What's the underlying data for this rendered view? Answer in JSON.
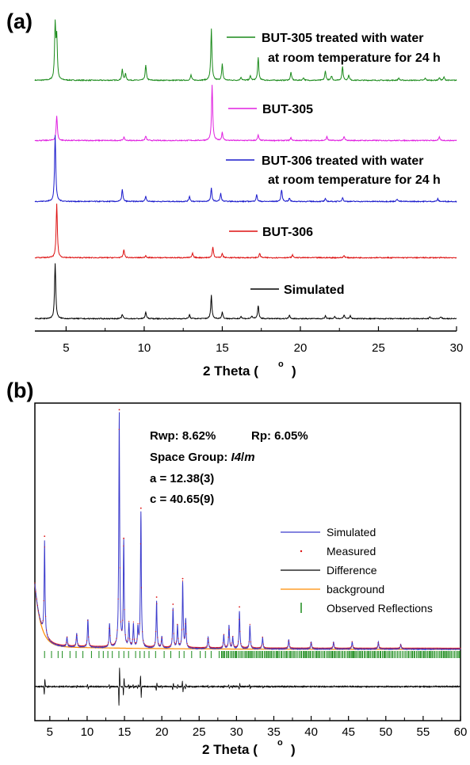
{
  "panel_a": {
    "label": "(a)",
    "xlabel": "2 Theta (",
    "xlabel_unit": "o",
    "xlabel_end": ")",
    "x_ticks": [
      "5",
      "10",
      "15",
      "20",
      "25",
      "30"
    ],
    "legend": [
      {
        "lines": [
          "BUT-305 treated with water",
          "at room temperature for 24 h"
        ],
        "color": "#1a8a1a"
      },
      {
        "lines": [
          "BUT-305"
        ],
        "color": "#e020e0"
      },
      {
        "lines": [
          "BUT-306 treated with water",
          "at room temperature for 24 h"
        ],
        "color": "#1a1acc"
      },
      {
        "lines": [
          "BUT-306"
        ],
        "color": "#dd1111"
      },
      {
        "lines": [
          "Simulated"
        ],
        "color": "#000000"
      }
    ]
  },
  "panel_b": {
    "label": "(b)",
    "xlabel": "2 Theta (",
    "xlabel_unit": "o",
    "xlabel_end": ")",
    "x_ticks": [
      "5",
      "10",
      "15",
      "20",
      "25",
      "30",
      "35",
      "40",
      "45",
      "50",
      "55",
      "60"
    ],
    "annotations": {
      "rwp": "Rwp: 8.62%",
      "rp": "Rp: 6.05%",
      "space_group_prefix": "Space Group: ",
      "space_group_italic": "I4",
      "space_group_suffix": "/",
      "space_group_m": "m",
      "a": "a = 12.38(3)",
      "c": "c = 40.65(9)"
    },
    "legend": [
      {
        "label": "Simulated",
        "color": "#3b3bcc",
        "style": "line"
      },
      {
        "label": "Measured",
        "color": "#dd1111",
        "style": "dot"
      },
      {
        "label": "Difference",
        "color": "#000000",
        "style": "line"
      },
      {
        "label": "background",
        "color": "#ff8c00",
        "style": "line"
      },
      {
        "label": "Observed Reflections",
        "color": "#1a8a1a",
        "style": "tick"
      }
    ]
  },
  "chart_data": [
    {
      "type": "line",
      "panel": "(a)",
      "xlabel": "2 Theta (°)",
      "xlim": [
        3,
        30
      ],
      "series": [
        {
          "name": "BUT-305 treated with water at room temperature for 24 h",
          "color": "#1a8a1a",
          "peaks": [
            [
              4.3,
              1.0
            ],
            [
              4.4,
              0.75
            ],
            [
              8.6,
              0.2
            ],
            [
              8.8,
              0.12
            ],
            [
              10.1,
              0.28
            ],
            [
              13.0,
              0.1
            ],
            [
              14.3,
              0.95
            ],
            [
              15.0,
              0.3
            ],
            [
              16.2,
              0.06
            ],
            [
              16.8,
              0.08
            ],
            [
              17.3,
              0.42
            ],
            [
              19.4,
              0.15
            ],
            [
              20.2,
              0.05
            ],
            [
              21.6,
              0.17
            ],
            [
              22.0,
              0.08
            ],
            [
              22.7,
              0.25
            ],
            [
              23.1,
              0.1
            ],
            [
              26.3,
              0.04
            ],
            [
              28.0,
              0.04
            ],
            [
              28.9,
              0.05
            ],
            [
              29.2,
              0.06
            ]
          ]
        },
        {
          "name": "BUT-305",
          "color": "#e020e0",
          "peaks": [
            [
              4.4,
              0.45
            ],
            [
              8.7,
              0.06
            ],
            [
              10.1,
              0.08
            ],
            [
              14.35,
              1.0
            ],
            [
              15.0,
              0.15
            ],
            [
              17.3,
              0.1
            ],
            [
              19.4,
              0.05
            ],
            [
              21.7,
              0.07
            ],
            [
              22.8,
              0.07
            ],
            [
              28.9,
              0.06
            ]
          ]
        },
        {
          "name": "BUT-306 treated with water at room temperature for 24 h",
          "color": "#1a1acc",
          "peaks": [
            [
              4.3,
              1.0
            ],
            [
              8.6,
              0.18
            ],
            [
              10.1,
              0.08
            ],
            [
              12.9,
              0.08
            ],
            [
              14.3,
              0.2
            ],
            [
              14.9,
              0.12
            ],
            [
              17.2,
              0.1
            ],
            [
              18.8,
              0.18
            ],
            [
              19.3,
              0.05
            ],
            [
              21.6,
              0.04
            ],
            [
              22.7,
              0.06
            ],
            [
              26.2,
              0.04
            ],
            [
              28.8,
              0.04
            ]
          ]
        },
        {
          "name": "BUT-306",
          "color": "#dd1111",
          "peaks": [
            [
              4.4,
              1.0
            ],
            [
              8.7,
              0.15
            ],
            [
              10.1,
              0.04
            ],
            [
              13.1,
              0.08
            ],
            [
              14.4,
              0.2
            ],
            [
              15.0,
              0.08
            ],
            [
              17.4,
              0.08
            ],
            [
              19.5,
              0.05
            ],
            [
              22.8,
              0.04
            ]
          ]
        },
        {
          "name": "Simulated",
          "color": "#000000",
          "peaks": [
            [
              4.3,
              1.0
            ],
            [
              8.6,
              0.08
            ],
            [
              10.1,
              0.12
            ],
            [
              12.9,
              0.07
            ],
            [
              14.3,
              0.42
            ],
            [
              15.0,
              0.12
            ],
            [
              16.2,
              0.04
            ],
            [
              16.9,
              0.05
            ],
            [
              17.3,
              0.24
            ],
            [
              19.3,
              0.07
            ],
            [
              21.6,
              0.05
            ],
            [
              22.2,
              0.04
            ],
            [
              22.8,
              0.07
            ],
            [
              23.2,
              0.05
            ],
            [
              28.3,
              0.03
            ],
            [
              29.0,
              0.03
            ]
          ]
        }
      ]
    },
    {
      "type": "line",
      "panel": "(b)",
      "xlabel": "2 Theta (°)",
      "xlim": [
        3,
        60
      ],
      "series": [
        {
          "name": "Simulated",
          "color": "#3b3bcc",
          "peaks": [
            [
              4.3,
              0.4
            ],
            [
              7.3,
              0.04
            ],
            [
              8.6,
              0.06
            ],
            [
              10.1,
              0.12
            ],
            [
              13.0,
              0.1
            ],
            [
              14.3,
              1.0
            ],
            [
              14.9,
              0.45
            ],
            [
              15.6,
              0.1
            ],
            [
              16.2,
              0.1
            ],
            [
              16.8,
              0.08
            ],
            [
              17.2,
              0.58
            ],
            [
              19.3,
              0.2
            ],
            [
              20.0,
              0.05
            ],
            [
              21.5,
              0.17
            ],
            [
              22.1,
              0.1
            ],
            [
              22.8,
              0.28
            ],
            [
              23.2,
              0.12
            ],
            [
              26.2,
              0.05
            ],
            [
              28.3,
              0.06
            ],
            [
              29.0,
              0.1
            ],
            [
              29.5,
              0.05
            ],
            [
              30.4,
              0.16
            ],
            [
              31.8,
              0.1
            ],
            [
              33.5,
              0.05
            ],
            [
              37.0,
              0.04
            ],
            [
              40.0,
              0.03
            ],
            [
              43.0,
              0.03
            ],
            [
              45.5,
              0.03
            ],
            [
              49.0,
              0.03
            ],
            [
              52.0,
              0.02
            ]
          ]
        },
        {
          "name": "Measured",
          "color": "#dd1111"
        },
        {
          "name": "Difference",
          "color": "#000000"
        },
        {
          "name": "background",
          "color": "#ff8c00"
        },
        {
          "name": "Observed Reflections",
          "color": "#1a8a1a"
        }
      ]
    }
  ]
}
